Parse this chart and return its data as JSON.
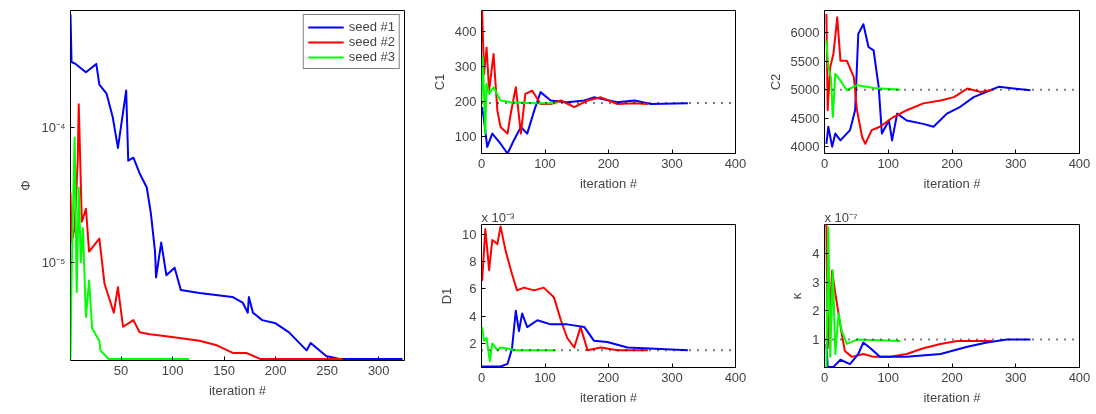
{
  "chart_data": [
    {
      "type": "line",
      "xlabel": "iteration #",
      "ylabel": "Φ",
      "log": "y",
      "xlim": [
        1,
        325
      ],
      "ylim": [
        1.85e-06,
        0.00075
      ],
      "xticks": [
        50,
        100,
        150,
        200,
        250,
        300
      ],
      "yticks": [
        {
          "value": 0.0001,
          "label": "10⁻⁴"
        },
        {
          "value": 1e-05,
          "label": "10⁻⁵"
        }
      ],
      "legend": "top right",
      "series": [
        {
          "name": "seed #1",
          "color": "#0000ff",
          "x": [
            1,
            2,
            6,
            16,
            26,
            29,
            36,
            42,
            47,
            55,
            57,
            62,
            68,
            75,
            79,
            83,
            84,
            89,
            94,
            102,
            108,
            126,
            158,
            168,
            173,
            174,
            178,
            187,
            200,
            213,
            230,
            234,
            249,
            262,
            301,
            323
          ],
          "values": [
            0.0007,
            0.00031,
            0.0003,
            0.00026,
            0.0003,
            0.00021,
            0.00018,
            0.00012,
            7.1e-05,
            0.00019,
            5.7e-05,
            6e-05,
            4.6e-05,
            3.6e-05,
            2.3e-05,
            1.2e-05,
            7.7e-06,
            1.4e-05,
            8e-06,
            9.1e-06,
            6.2e-06,
            5.9e-06,
            5.5e-06,
            5e-06,
            4.2e-06,
            5.5e-06,
            4.2e-06,
            3.7e-06,
            3.5e-06,
            3e-06,
            2.2e-06,
            2.5e-06,
            2e-06,
            1.9e-06,
            1.9e-06,
            1.9e-06
          ]
        },
        {
          "name": "seed #2",
          "color": "#ff0000",
          "x": [
            1,
            2,
            5,
            8,
            9,
            12,
            16,
            19,
            29,
            34,
            43,
            47,
            52,
            62,
            68,
            78,
            94,
            110,
            126,
            143,
            159,
            172,
            185,
            256,
            265
          ],
          "values": [
            3.3e-05,
            1.4e-05,
            1.8e-05,
            5.7e-05,
            0.00015,
            2e-05,
            2.5e-05,
            1.2e-05,
            1.5e-05,
            6.9e-06,
            4.2e-06,
            6.5e-06,
            3.3e-06,
            3.7e-06,
            3e-06,
            2.9e-06,
            2.8e-06,
            2.7e-06,
            2.6e-06,
            2.4e-06,
            2.1e-06,
            2.1e-06,
            1.9e-06,
            1.9e-06,
            1.9e-06
          ]
        },
        {
          "name": "seed #3",
          "color": "#00ff00",
          "x": [
            1,
            2,
            5,
            7,
            9,
            11,
            13,
            16,
            19,
            22,
            29,
            30,
            38,
            116
          ],
          "values": [
            1.9e-06,
            7.7e-06,
            8.5e-05,
            6e-06,
            3.6e-05,
            1e-05,
            1.8e-05,
            3.9e-06,
            7.3e-06,
            3.2e-06,
            2.6e-06,
            2.2e-06,
            1.9e-06,
            1.9e-06
          ]
        }
      ]
    },
    {
      "type": "line",
      "xlabel": "iteration #",
      "ylabel": "C1",
      "xlim": [
        0,
        400
      ],
      "ylim": [
        50,
        460
      ],
      "xticks": [
        0,
        100,
        200,
        300,
        400
      ],
      "yticks": [
        100,
        200,
        300,
        400
      ],
      "ref_lines": [
        {
          "axis": "y",
          "value": 195,
          "color": "#000000",
          "line_style": "dotted"
        }
      ],
      "series": [
        {
          "color": "#0000ff",
          "x": [
            1,
            4,
            9,
            17,
            30,
            41,
            51,
            62,
            72,
            83,
            93,
            109,
            135,
            162,
            177,
            214,
            241,
            267,
            325
          ],
          "values": [
            183,
            145,
            69,
            107,
            78,
            50,
            88,
            126,
            107,
            173,
            226,
            202,
            197,
            202,
            211,
            197,
            202,
            192,
            194
          ]
        },
        {
          "color": "#ff0000",
          "x": [
            1,
            4,
            8,
            12,
            19,
            25,
            30,
            41,
            46,
            54,
            62,
            69,
            80,
            93,
            109,
            125,
            146,
            167,
            188,
            214,
            241,
            262
          ],
          "values": [
            459,
            278,
            354,
            230,
            335,
            173,
            126,
            107,
            164,
            240,
            107,
            221,
            230,
            192,
            192,
            202,
            183,
            202,
            211,
            192,
            194,
            192
          ]
        },
        {
          "color": "#00ff00",
          "x": [
            0,
            2,
            6,
            8,
            12,
            19,
            30,
            46,
            83,
            119
          ],
          "values": [
            202,
            326,
            107,
            250,
            221,
            240,
            202,
            197,
            194,
            194
          ]
        }
      ]
    },
    {
      "type": "line",
      "xlabel": "iteration #",
      "ylabel": "C2",
      "xlim": [
        0,
        400
      ],
      "ylim": [
        3880,
        6390
      ],
      "xticks": [
        0,
        100,
        200,
        300,
        400
      ],
      "yticks": [
        4000,
        4500,
        5000,
        5500,
        6000
      ],
      "ref_lines": [
        {
          "axis": "y",
          "value": 5000,
          "color": "#000000",
          "line_style": "dotted"
        }
      ],
      "series": [
        {
          "color": "#0000ff",
          "x": [
            3,
            6,
            12,
            17,
            25,
            40,
            48,
            53,
            61,
            69,
            77,
            85,
            90,
            101,
            106,
            114,
            129,
            155,
            171,
            192,
            213,
            234,
            260,
            273,
            323
          ],
          "values": [
            4050,
            4350,
            4000,
            4230,
            4110,
            4290,
            4640,
            5980,
            6150,
            5750,
            5690,
            5050,
            4230,
            4460,
            4110,
            4580,
            4460,
            4400,
            4350,
            4580,
            4700,
            4870,
            4990,
            5050,
            4990
          ]
        },
        {
          "color": "#ff0000",
          "x": [
            3,
            5,
            9,
            14,
            20,
            25,
            35,
            46,
            51,
            59,
            64,
            74,
            87,
            108,
            129,
            155,
            182,
            203,
            224,
            245,
            263
          ],
          "values": [
            6330,
            4640,
            5400,
            5630,
            6270,
            5510,
            5510,
            5220,
            4640,
            4170,
            4050,
            4290,
            4350,
            4520,
            4640,
            4760,
            4810,
            4870,
            5020,
            4960,
            5000
          ]
        },
        {
          "color": "#00ff00",
          "x": [
            3,
            6,
            10,
            13,
            17,
            25,
            35,
            51,
            77,
            119
          ],
          "values": [
            5860,
            5400,
            5220,
            4520,
            5280,
            5160,
            4990,
            5080,
            5030,
            5000
          ]
        }
      ]
    },
    {
      "type": "line",
      "xlabel": "iteration #",
      "ylabel": "D1",
      "annotations": [
        "x 10⁻³"
      ],
      "xlim": [
        0,
        400
      ],
      "ylim": [
        0.23,
        10.74
      ],
      "xticks": [
        0,
        100,
        200,
        300,
        400
      ],
      "yticks": [
        2,
        4,
        6,
        8,
        10
      ],
      "ref_lines": [
        {
          "axis": "y",
          "value": 1.5,
          "color": "#000000",
          "line_style": "dotted"
        }
      ],
      "series": [
        {
          "color": "#ff0000",
          "x": [
            1,
            6,
            12,
            17,
            25,
            30,
            38,
            48,
            56,
            67,
            83,
            98,
            114,
            125,
            135,
            146,
            156,
            167,
            188,
            214,
            262
          ],
          "values": [
            6.6,
            10.4,
            7.4,
            9.6,
            9.3,
            10.6,
            8.8,
            7.1,
            5.9,
            6.1,
            5.9,
            6.1,
            5.4,
            3.7,
            2.4,
            1.7,
            3.2,
            1.5,
            1.7,
            1.5,
            1.5
          ]
        },
        {
          "color": "#0000ff",
          "x": [
            1,
            30,
            41,
            48,
            54,
            59,
            64,
            72,
            88,
            109,
            135,
            162,
            177,
            198,
            230,
            325
          ],
          "values": [
            0.3,
            0.3,
            0.5,
            1.6,
            4.4,
            2.9,
            4.2,
            3.2,
            3.7,
            3.4,
            3.4,
            3.2,
            2.2,
            2.1,
            1.7,
            1.5
          ]
        },
        {
          "color": "#00ff00",
          "x": [
            1,
            4,
            8,
            13,
            17,
            25,
            30,
            56,
            117
          ],
          "values": [
            3.2,
            2.2,
            2.4,
            0.7,
            2.0,
            1.5,
            1.7,
            1.5,
            1.5
          ]
        }
      ]
    },
    {
      "type": "line",
      "xlabel": "iteration #",
      "ylabel": "κ",
      "annotations": [
        "x 10⁻⁷"
      ],
      "xlim": [
        0,
        400
      ],
      "ylim": [
        0.03,
        5.0
      ],
      "xticks": [
        0,
        100,
        200,
        300,
        400
      ],
      "yticks": [
        1,
        2,
        3,
        4
      ],
      "ref_lines": [
        {
          "axis": "y",
          "value": 1,
          "color": "#000000",
          "line_style": "dotted"
        }
      ],
      "series": [
        {
          "color": "#ff0000",
          "x": [
            3,
            5,
            12,
            17,
            22,
            27,
            32,
            43,
            61,
            77,
            103,
            129,
            155,
            182,
            208,
            234,
            263
          ],
          "values": [
            5.0,
            0.7,
            3.4,
            2.6,
            1.9,
            1.2,
            0.6,
            0.4,
            0.5,
            0.4,
            0.4,
            0.5,
            0.7,
            0.85,
            0.95,
            0.95,
            0.95
          ]
        },
        {
          "color": "#0000ff",
          "x": [
            3,
            5,
            14,
            25,
            40,
            53,
            61,
            72,
            87,
            129,
            182,
            224,
            255,
            286,
            323
          ],
          "values": [
            0.85,
            0.05,
            0.05,
            0.3,
            0.15,
            0.5,
            0.9,
            0.7,
            0.4,
            0.4,
            0.5,
            0.75,
            0.9,
            1.0,
            1.0
          ]
        },
        {
          "color": "#00ff00",
          "x": [
            3,
            6,
            9,
            13,
            17,
            22,
            27,
            35,
            51,
            119
          ],
          "values": [
            0.05,
            4.9,
            0.4,
            3.4,
            0.5,
            1.9,
            1.3,
            0.85,
            1.0,
            0.95
          ]
        }
      ]
    }
  ]
}
